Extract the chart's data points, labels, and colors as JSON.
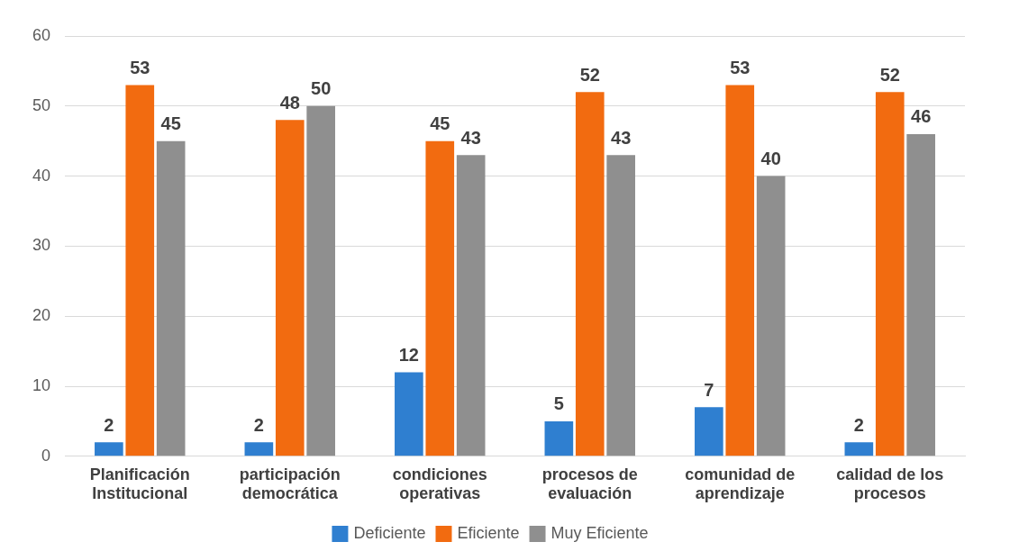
{
  "chart_data": {
    "type": "bar",
    "categories": [
      "Planificación Institucional",
      "participación democrática",
      "condiciones operativas",
      "procesos de evaluación",
      "comunidad de aprendizaje",
      "calidad de los procesos"
    ],
    "series": [
      {
        "name": "Deficiente",
        "color": "#2f7fd0",
        "values": [
          2,
          2,
          12,
          5,
          7,
          2
        ]
      },
      {
        "name": "Eficiente",
        "color": "#f26b10",
        "values": [
          53,
          48,
          45,
          52,
          53,
          52
        ]
      },
      {
        "name": "Muy Eficiente",
        "color": "#8f8f8f",
        "values": [
          45,
          50,
          43,
          43,
          40,
          46
        ]
      }
    ],
    "ylim": [
      0,
      60
    ],
    "yticks": [
      0,
      10,
      20,
      30,
      40,
      50,
      60
    ],
    "grid": "y",
    "legend": "bottom",
    "data_labels": true
  }
}
